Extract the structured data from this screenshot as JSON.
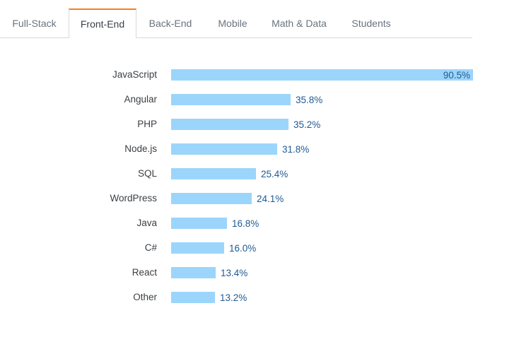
{
  "tabs": [
    {
      "label": "Full-Stack",
      "active": false
    },
    {
      "label": "Front-End",
      "active": true
    },
    {
      "label": "Back-End",
      "active": false
    },
    {
      "label": "Mobile",
      "active": false
    },
    {
      "label": "Math & Data",
      "active": false
    },
    {
      "label": "Students",
      "active": false
    }
  ],
  "colors": {
    "bar": "#9cd5fb",
    "value_text": "#1f5a94",
    "active_tab_accent": "#f48024"
  },
  "chart_data": {
    "type": "bar",
    "orientation": "horizontal",
    "categories": [
      "JavaScript",
      "Angular",
      "PHP",
      "Node.js",
      "SQL",
      "WordPress",
      "Java",
      "C#",
      "React",
      "Other"
    ],
    "values": [
      90.5,
      35.8,
      35.2,
      31.8,
      25.4,
      24.1,
      16.8,
      16.0,
      13.4,
      13.2
    ],
    "value_labels": [
      "90.5%",
      "35.8%",
      "35.2%",
      "31.8%",
      "25.4%",
      "24.1%",
      "16.8%",
      "16.0%",
      "13.4%",
      "13.2%"
    ],
    "xlim": [
      0,
      90.5
    ],
    "grid": false,
    "legend": "none"
  }
}
